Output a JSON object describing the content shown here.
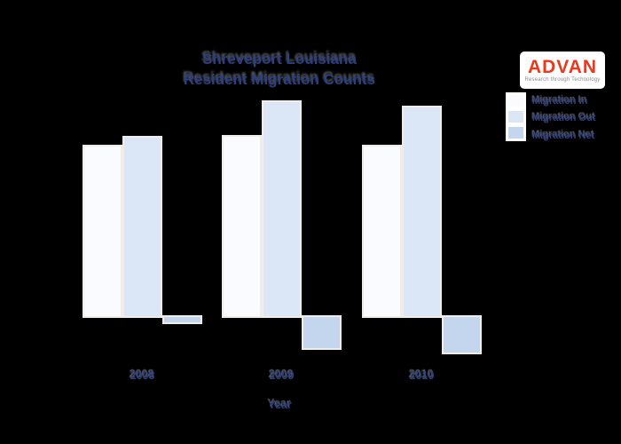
{
  "page": {
    "background": "#000000",
    "text_color": "#2c3f85"
  },
  "title": {
    "line1": "Shreveport Louisiana",
    "line2": "Resident Migration Counts",
    "color": "#2c3f85"
  },
  "logo": {
    "brand": "ADVAN",
    "tagline": "Research through Technology",
    "brand_color": "#e8391d",
    "background": "#ffffff"
  },
  "legend": {
    "background": "#ffffff",
    "position": "upper right",
    "entries": [
      {
        "label": "Migration In",
        "color": "#fafbfe"
      },
      {
        "label": "Migration Out",
        "color": "#dbe7f7"
      },
      {
        "label": "Migration Net",
        "color": "#c3d6ee"
      }
    ]
  },
  "chart_data": {
    "type": "bar",
    "title": "Shreveport Louisiana Resident Migration Counts",
    "categories": [
      "2008",
      "2009",
      "2010"
    ],
    "series": [
      {
        "name": "Migration In",
        "color": "#fafbfe",
        "values": [
          195,
          206,
          195
        ]
      },
      {
        "name": "Migration Out",
        "color": "#dbe7f7",
        "values": [
          205,
          245,
          239
        ]
      },
      {
        "name": "Migration Net",
        "color": "#c3d6ee",
        "values": [
          -10,
          -39,
          -44
        ]
      }
    ],
    "xlabel": "Year",
    "ylabel": "",
    "ylim": [
      -60,
      260
    ],
    "grid": false,
    "y_axis_labels_visible": false,
    "legend_position": "upper right",
    "value_scale_note": "no y-axis shown; values estimated proportionally from bar heights"
  }
}
